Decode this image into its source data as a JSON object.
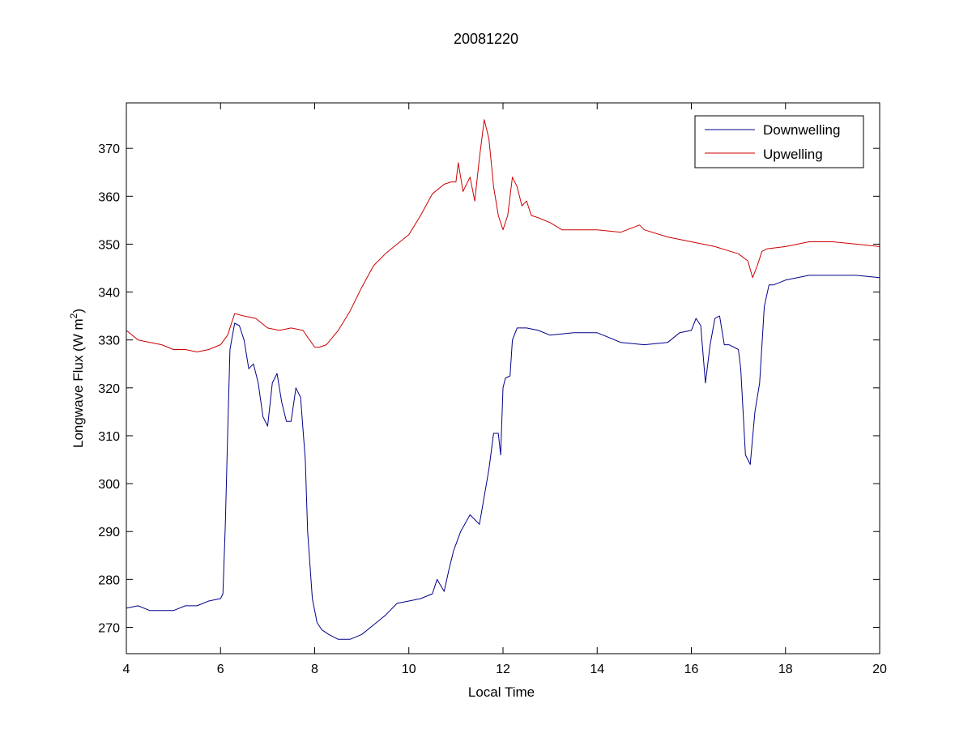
{
  "chart_data": {
    "type": "line",
    "title": "20081220",
    "xlabel": "Local Time",
    "ylabel": "Longwave Flux (W m",
    "ylabel_sup": "2",
    "ylabel_end": ")",
    "xlim": [
      4,
      20
    ],
    "ylim": [
      264.5,
      379.5
    ],
    "xticks": [
      4,
      6,
      8,
      10,
      12,
      14,
      16,
      18,
      20
    ],
    "yticks": [
      270,
      280,
      290,
      300,
      310,
      320,
      330,
      340,
      350,
      360,
      370
    ],
    "grid": false,
    "legend_position": "top-right",
    "series": [
      {
        "name": "Downwelling",
        "color": "#00008b",
        "x": [
          4.0,
          4.25,
          4.5,
          4.75,
          5.0,
          5.25,
          5.5,
          5.75,
          6.0,
          6.05,
          6.1,
          6.15,
          6.2,
          6.3,
          6.4,
          6.5,
          6.6,
          6.7,
          6.8,
          6.9,
          7.0,
          7.1,
          7.2,
          7.3,
          7.4,
          7.5,
          7.6,
          7.7,
          7.8,
          7.85,
          7.95,
          8.05,
          8.15,
          8.3,
          8.5,
          8.75,
          9.0,
          9.25,
          9.5,
          9.75,
          10.0,
          10.25,
          10.5,
          10.6,
          10.75,
          10.85,
          10.95,
          11.1,
          11.3,
          11.5,
          11.7,
          11.8,
          11.9,
          11.95,
          12.0,
          12.05,
          12.15,
          12.2,
          12.3,
          12.5,
          12.75,
          13.0,
          13.5,
          14.0,
          14.25,
          14.5,
          15.0,
          15.5,
          15.75,
          16.0,
          16.1,
          16.2,
          16.3,
          16.4,
          16.5,
          16.6,
          16.7,
          16.8,
          17.0,
          17.05,
          17.15,
          17.25,
          17.35,
          17.45,
          17.55,
          17.65,
          17.75,
          18.0,
          18.5,
          19.0,
          19.5,
          20.0
        ],
        "y": [
          274,
          274.5,
          273.5,
          273.5,
          273.5,
          274.5,
          274.5,
          275.5,
          276,
          277,
          291,
          310,
          328,
          333.5,
          333,
          330,
          324,
          325,
          321,
          314,
          312,
          321,
          323,
          317,
          313,
          313,
          320,
          318,
          305,
          290,
          276,
          271,
          269.5,
          268.5,
          267.5,
          267.5,
          268.5,
          270.5,
          272.5,
          275,
          275.5,
          276,
          277,
          280,
          277.5,
          282,
          286,
          290,
          293.5,
          291.5,
          303,
          310.5,
          310.5,
          306,
          320,
          322,
          322.5,
          330,
          332.5,
          332.5,
          332,
          331,
          331.5,
          331.5,
          330.5,
          329.5,
          329,
          329.5,
          331.5,
          332,
          334.5,
          333,
          321,
          329,
          334.5,
          335,
          329,
          329,
          328,
          324,
          306,
          304,
          315,
          321,
          337,
          341.5,
          341.5,
          342.5,
          343.5,
          343.5,
          343.5,
          343
        ]
      },
      {
        "name": "Upwelling",
        "color": "#cc0000",
        "x": [
          4.0,
          4.25,
          4.5,
          4.75,
          5.0,
          5.25,
          5.5,
          5.75,
          6.0,
          6.15,
          6.3,
          6.5,
          6.75,
          7.0,
          7.25,
          7.5,
          7.75,
          8.0,
          8.1,
          8.25,
          8.5,
          8.75,
          9.0,
          9.25,
          9.5,
          9.75,
          10.0,
          10.25,
          10.5,
          10.75,
          10.9,
          11.0,
          11.05,
          11.15,
          11.3,
          11.4,
          11.5,
          11.6,
          11.7,
          11.8,
          11.9,
          12.0,
          12.1,
          12.2,
          12.3,
          12.4,
          12.5,
          12.6,
          12.75,
          13.0,
          13.25,
          13.5,
          14.0,
          14.5,
          14.9,
          15.0,
          15.5,
          16.0,
          16.5,
          17.0,
          17.2,
          17.3,
          17.4,
          17.5,
          17.6,
          18.0,
          18.5,
          19.0,
          19.5,
          20.0
        ],
        "y": [
          332,
          330,
          329.5,
          329,
          328,
          328,
          327.5,
          328,
          329,
          331,
          335.5,
          335,
          334.5,
          332.5,
          332,
          332.5,
          332,
          328.5,
          328.5,
          329,
          332,
          336,
          341,
          345.5,
          348,
          350,
          352,
          356,
          360.5,
          362.5,
          363,
          363,
          367,
          361,
          364,
          359,
          368,
          376,
          372,
          362,
          356,
          353,
          356,
          364,
          362,
          358,
          359,
          356,
          355.5,
          354.5,
          353,
          353,
          353,
          352.5,
          354,
          353,
          351.5,
          350.5,
          349.5,
          348,
          346.5,
          343,
          345.5,
          348.5,
          349,
          349.5,
          350.5,
          350.5,
          350,
          349.5
        ]
      }
    ]
  }
}
